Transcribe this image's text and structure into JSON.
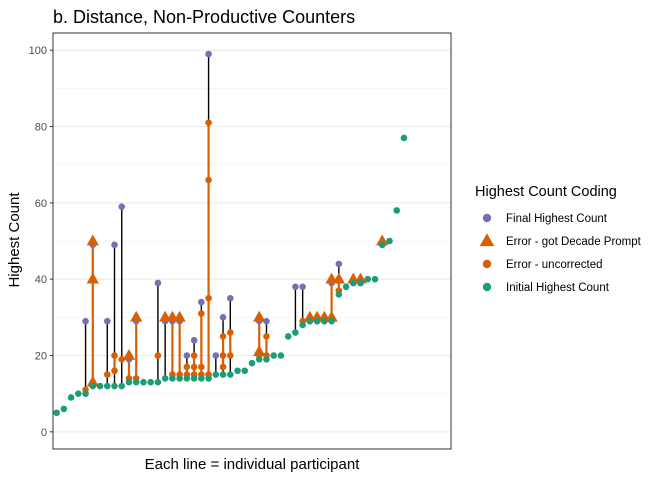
{
  "chart_data": {
    "type": "scatter",
    "title": "b. Distance, Non-Productive Counters",
    "xlabel": "Each line = individual participant",
    "ylabel": "Highest Count",
    "ylim": [
      -4.5,
      104.5
    ],
    "yticks": [
      0,
      20,
      40,
      60,
      80,
      100
    ],
    "xlim": [
      0.5,
      55.5
    ],
    "xticks_shown": false,
    "grid": true,
    "legend": {
      "title": "Highest Count Coding",
      "position": "right",
      "entries": [
        {
          "label": "Final Highest Count",
          "shape": "circle",
          "color": "#7570B3"
        },
        {
          "label": "Error - got Decade Prompt",
          "shape": "triangle",
          "color": "#D95F02"
        },
        {
          "label": "Error - uncorrected",
          "shape": "circle",
          "color": "#D95F02"
        },
        {
          "label": "Initial Highest Count",
          "shape": "circle",
          "color": "#1B9E77"
        }
      ]
    },
    "participants": [
      {
        "x": 1,
        "initial": 5,
        "errors_uncorrected": [],
        "errors_prompt": [],
        "final": null
      },
      {
        "x": 2,
        "initial": 6,
        "errors_uncorrected": [],
        "errors_prompt": [],
        "final": null
      },
      {
        "x": 3,
        "initial": 9,
        "errors_uncorrected": [],
        "errors_prompt": [],
        "final": null
      },
      {
        "x": 4,
        "initial": 10,
        "errors_uncorrected": [],
        "errors_prompt": [],
        "final": null
      },
      {
        "x": 5,
        "initial": 10,
        "errors_uncorrected": [
          11
        ],
        "errors_prompt": [],
        "final": 29
      },
      {
        "x": 6,
        "initial": 12,
        "errors_uncorrected": [],
        "errors_prompt": [
          13,
          40,
          50
        ],
        "final": 49
      },
      {
        "x": 7,
        "initial": 12,
        "errors_uncorrected": [],
        "errors_prompt": [],
        "final": null
      },
      {
        "x": 8,
        "initial": 12,
        "errors_uncorrected": [
          15
        ],
        "errors_prompt": [],
        "final": 29
      },
      {
        "x": 9,
        "initial": 12,
        "errors_uncorrected": [
          16,
          20
        ],
        "errors_prompt": [],
        "final": 49
      },
      {
        "x": 10,
        "initial": 12,
        "errors_uncorrected": [
          19
        ],
        "errors_prompt": [],
        "final": 59
      },
      {
        "x": 11,
        "initial": 13,
        "errors_uncorrected": [
          14
        ],
        "errors_prompt": [
          20
        ],
        "final": 19
      },
      {
        "x": 12,
        "initial": 13,
        "errors_uncorrected": [
          14
        ],
        "errors_prompt": [
          30
        ],
        "final": 29
      },
      {
        "x": 13,
        "initial": 13,
        "errors_uncorrected": [],
        "errors_prompt": [],
        "final": null
      },
      {
        "x": 14,
        "initial": 13,
        "errors_uncorrected": [],
        "errors_prompt": [],
        "final": null
      },
      {
        "x": 15,
        "initial": 13,
        "errors_uncorrected": [
          20
        ],
        "errors_prompt": [],
        "final": 39
      },
      {
        "x": 16,
        "initial": 14,
        "errors_uncorrected": [],
        "errors_prompt": [
          30
        ],
        "final": 29
      },
      {
        "x": 17,
        "initial": 14,
        "errors_uncorrected": [
          15
        ],
        "errors_prompt": [
          30
        ],
        "final": 29
      },
      {
        "x": 18,
        "initial": 14,
        "errors_uncorrected": [
          15
        ],
        "errors_prompt": [
          30
        ],
        "final": 29
      },
      {
        "x": 19,
        "initial": 14,
        "errors_uncorrected": [
          15,
          17
        ],
        "errors_prompt": [],
        "final": 20
      },
      {
        "x": 20,
        "initial": 14,
        "errors_uncorrected": [
          15,
          17,
          20
        ],
        "errors_prompt": [],
        "final": 24
      },
      {
        "x": 21,
        "initial": 14,
        "errors_uncorrected": [
          15,
          17,
          31
        ],
        "errors_prompt": [],
        "final": 34
      },
      {
        "x": 22,
        "initial": 14,
        "errors_uncorrected": [
          15,
          35,
          66,
          81
        ],
        "errors_prompt": [],
        "final": 99
      },
      {
        "x": 23,
        "initial": 15,
        "errors_uncorrected": [],
        "errors_prompt": [],
        "final": 20
      },
      {
        "x": 24,
        "initial": 15,
        "errors_uncorrected": [
          17,
          20,
          25
        ],
        "errors_prompt": [],
        "final": 30
      },
      {
        "x": 25,
        "initial": 15,
        "errors_uncorrected": [
          20,
          26
        ],
        "errors_prompt": [],
        "final": 35
      },
      {
        "x": 26,
        "initial": 16,
        "errors_uncorrected": [],
        "errors_prompt": [],
        "final": null
      },
      {
        "x": 27,
        "initial": 16,
        "errors_uncorrected": [],
        "errors_prompt": [],
        "final": null
      },
      {
        "x": 28,
        "initial": 18,
        "errors_uncorrected": [],
        "errors_prompt": [],
        "final": null
      },
      {
        "x": 29,
        "initial": 19,
        "errors_uncorrected": [
          20
        ],
        "errors_prompt": [
          21,
          30
        ],
        "final": 29
      },
      {
        "x": 30,
        "initial": 19,
        "errors_uncorrected": [
          20,
          25
        ],
        "errors_prompt": [],
        "final": 29
      },
      {
        "x": 31,
        "initial": 20,
        "errors_uncorrected": [],
        "errors_prompt": [],
        "final": null
      },
      {
        "x": 32,
        "initial": 20,
        "errors_uncorrected": [],
        "errors_prompt": [],
        "final": null
      },
      {
        "x": 33,
        "initial": 25,
        "errors_uncorrected": [],
        "errors_prompt": [],
        "final": null
      },
      {
        "x": 34,
        "initial": 26,
        "errors_uncorrected": [],
        "errors_prompt": [],
        "final": 38
      },
      {
        "x": 35,
        "initial": 28,
        "errors_uncorrected": [
          29
        ],
        "errors_prompt": [],
        "final": 38
      },
      {
        "x": 36,
        "initial": 29,
        "errors_uncorrected": [],
        "errors_prompt": [
          30
        ],
        "final": 29
      },
      {
        "x": 37,
        "initial": 29,
        "errors_uncorrected": [],
        "errors_prompt": [
          30
        ],
        "final": 29
      },
      {
        "x": 38,
        "initial": 29,
        "errors_uncorrected": [],
        "errors_prompt": [
          30
        ],
        "final": 29
      },
      {
        "x": 39,
        "initial": 29,
        "errors_uncorrected": [],
        "errors_prompt": [
          30,
          40
        ],
        "final": 39
      },
      {
        "x": 40,
        "initial": 36,
        "errors_uncorrected": [
          37
        ],
        "errors_prompt": [
          40
        ],
        "final": 44
      },
      {
        "x": 41,
        "initial": 38,
        "errors_uncorrected": [],
        "errors_prompt": [],
        "final": null
      },
      {
        "x": 42,
        "initial": 39,
        "errors_uncorrected": [],
        "errors_prompt": [
          40
        ],
        "final": 39
      },
      {
        "x": 43,
        "initial": 39,
        "errors_uncorrected": [],
        "errors_prompt": [
          40
        ],
        "final": 39
      },
      {
        "x": 44,
        "initial": 40,
        "errors_uncorrected": [],
        "errors_prompt": [],
        "final": null
      },
      {
        "x": 45,
        "initial": 40,
        "errors_uncorrected": [],
        "errors_prompt": [],
        "final": null
      },
      {
        "x": 46,
        "initial": 49,
        "errors_uncorrected": [],
        "errors_prompt": [
          50
        ],
        "final": 49
      },
      {
        "x": 47,
        "initial": 50,
        "errors_uncorrected": [],
        "errors_prompt": [],
        "final": null
      },
      {
        "x": 48,
        "initial": 58,
        "errors_uncorrected": [],
        "errors_prompt": [],
        "final": null
      },
      {
        "x": 49,
        "initial": 77,
        "errors_uncorrected": [],
        "errors_prompt": [],
        "final": null
      }
    ]
  }
}
